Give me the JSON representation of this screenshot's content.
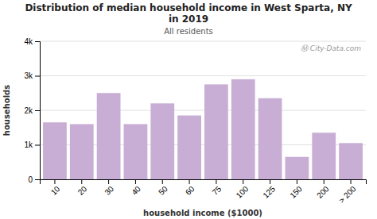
{
  "chart_data": {
    "type": "bar",
    "title": "Distribution of median household income in West Sparta, NY\nin 2019",
    "subtitle": "All residents",
    "xlabel": "household income ($1000)",
    "ylabel": "households",
    "annotations": [
      "Ⓜ City-Data.com"
    ],
    "categories": [
      "10",
      "20",
      "30",
      "40",
      "50",
      "60",
      "75",
      "100",
      "125",
      "150",
      "200",
      "> 200"
    ],
    "values": [
      1650,
      1600,
      2500,
      1600,
      2200,
      1850,
      2750,
      2900,
      2350,
      650,
      1350,
      1050
    ],
    "color": "#c8aed4",
    "ylim": [
      0,
      4000
    ],
    "yticks": [
      0,
      {
        "value": 1000,
        "label": "1k"
      },
      {
        "value": 2000,
        "label": "2k"
      },
      {
        "value": 3000,
        "label": "3k"
      },
      {
        "value": 4000,
        "label": "4k"
      }
    ],
    "grid": true
  }
}
